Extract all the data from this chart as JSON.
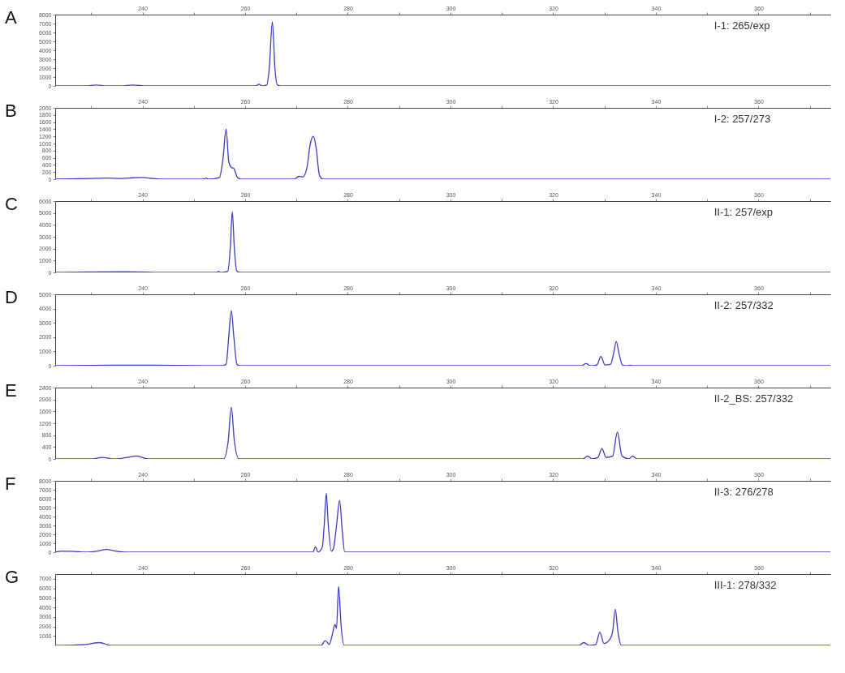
{
  "chart_data": [
    {
      "type": "line",
      "color": "#3b3bc4",
      "annotations": [
        "A",
        "I-1: 265/exp"
      ],
      "xlim": [
        223,
        374
      ],
      "xticks": [
        {
          "value": 230,
          "label": null
        },
        240,
        {
          "value": 250,
          "label": null
        },
        260,
        {
          "value": 270,
          "label": null
        },
        280,
        {
          "value": 290,
          "label": null
        },
        300,
        {
          "value": 310,
          "label": null
        },
        320,
        {
          "value": 330,
          "label": null
        },
        340,
        {
          "value": 350,
          "label": null
        },
        360,
        {
          "value": 370,
          "label": null
        }
      ],
      "ylim": [
        0,
        8000
      ],
      "yticks": [
        0,
        1000,
        2000,
        3000,
        4000,
        5000,
        6000,
        7000,
        8000
      ],
      "x": [
        223,
        229,
        231,
        233,
        236,
        238,
        241,
        243,
        262,
        262.7,
        263.3,
        264.2,
        264.7,
        265.3,
        265.8,
        266.3,
        267,
        374
      ],
      "values": [
        0,
        0,
        100,
        0,
        0,
        100,
        0,
        0,
        0,
        200,
        0,
        100,
        2000,
        7200,
        2000,
        100,
        0,
        0
      ]
    },
    {
      "type": "line",
      "color": "#3b3bc4",
      "annotations": [
        "B",
        "I-2: 257/273"
      ],
      "xlim": [
        223,
        374
      ],
      "xticks": [
        {
          "value": 230,
          "label": null
        },
        240,
        {
          "value": 250,
          "label": null
        },
        260,
        {
          "value": 270,
          "label": null
        },
        280,
        {
          "value": 290,
          "label": null
        },
        300,
        {
          "value": 310,
          "label": null
        },
        320,
        {
          "value": 330,
          "label": null
        },
        340,
        {
          "value": 350,
          "label": null
        },
        360,
        {
          "value": 370,
          "label": null
        }
      ],
      "ylim": [
        0,
        2000
      ],
      "yticks": [
        0,
        200,
        400,
        600,
        800,
        1000,
        1200,
        1400,
        1600,
        1800,
        2000
      ],
      "x": [
        223,
        230,
        233,
        236,
        238,
        240,
        242,
        244,
        252,
        252.4,
        252.8,
        255,
        255.7,
        256.3,
        256.8,
        257.3,
        257.8,
        258.5,
        259.2,
        269.5,
        270.5,
        271.2,
        272,
        272.7,
        273.3,
        273.8,
        274.5,
        275.2,
        374
      ],
      "values": [
        0,
        20,
        30,
        20,
        40,
        50,
        20,
        0,
        0,
        30,
        0,
        50,
        600,
        1400,
        500,
        330,
        300,
        50,
        0,
        0,
        80,
        60,
        300,
        1000,
        1200,
        900,
        100,
        0,
        0
      ]
    },
    {
      "type": "line",
      "color": "#3b3bc4",
      "annotations": [
        "C",
        "II-1: 257/exp"
      ],
      "xlim": [
        223,
        374
      ],
      "xticks": [
        {
          "value": 230,
          "label": null
        },
        240,
        {
          "value": 250,
          "label": null
        },
        260,
        {
          "value": 270,
          "label": null
        },
        280,
        {
          "value": 290,
          "label": null
        },
        300,
        {
          "value": 310,
          "label": null
        },
        320,
        {
          "value": 330,
          "label": null
        },
        340,
        {
          "value": 350,
          "label": null
        },
        360,
        {
          "value": 370,
          "label": null
        }
      ],
      "ylim": [
        0,
        6000
      ],
      "yticks": [
        0,
        1000,
        2000,
        3000,
        4000,
        5000,
        6000
      ],
      "x": [
        223,
        230,
        236,
        240,
        243,
        254.5,
        254.8,
        255.2,
        256.6,
        257.1,
        257.5,
        257.9,
        258.4,
        259,
        374
      ],
      "values": [
        0,
        40,
        50,
        40,
        0,
        0,
        100,
        0,
        100,
        2000,
        5100,
        2000,
        100,
        0,
        0
      ]
    },
    {
      "type": "line",
      "color": "#3b3bc4",
      "annotations": [
        "D",
        "II-2: 257/332"
      ],
      "xlim": [
        223,
        374
      ],
      "xticks": [
        {
          "value": 230,
          "label": null
        },
        240,
        {
          "value": 250,
          "label": null
        },
        260,
        {
          "value": 270,
          "label": null
        },
        280,
        {
          "value": 290,
          "label": null
        },
        300,
        {
          "value": 310,
          "label": null
        },
        320,
        {
          "value": 330,
          "label": null
        },
        340,
        {
          "value": 350,
          "label": null
        },
        360,
        {
          "value": 370,
          "label": null
        }
      ],
      "ylim": [
        0,
        5000
      ],
      "yticks": [
        0,
        1000,
        2000,
        3000,
        4000,
        5000
      ],
      "x": [
        223,
        235,
        242,
        255.5,
        256.3,
        256.8,
        257.3,
        257.8,
        258.4,
        259,
        325.5,
        326.4,
        327.3,
        328.5,
        329.3,
        330.1,
        331.2,
        331.8,
        332.3,
        332.8,
        333.5,
        334.5,
        335,
        335.5,
        374
      ],
      "values": [
        0,
        40,
        30,
        0,
        100,
        2000,
        3850,
        2000,
        100,
        0,
        0,
        150,
        0,
        50,
        650,
        50,
        100,
        900,
        1700,
        900,
        40,
        0,
        40,
        0,
        0
      ]
    },
    {
      "type": "line",
      "color": "#3b3bc4",
      "annotations": [
        "E",
        "II-2_BS: 257/332"
      ],
      "xlim": [
        223,
        374
      ],
      "xticks": [
        {
          "value": 230,
          "label": null
        },
        240,
        {
          "value": 250,
          "label": null
        },
        260,
        {
          "value": 270,
          "label": null
        },
        280,
        {
          "value": 290,
          "label": null
        },
        300,
        {
          "value": 310,
          "label": null
        },
        320,
        {
          "value": 330,
          "label": null
        },
        340,
        {
          "value": 350,
          "label": null
        },
        360,
        {
          "value": 370,
          "label": null
        }
      ],
      "ylim": [
        0,
        2400
      ],
      "yticks": [
        0,
        400,
        800,
        1200,
        1600,
        2000,
        2400
      ],
      "x": [
        223,
        230,
        232.2,
        234.5,
        237,
        238.9,
        241,
        255.8,
        256.7,
        257.3,
        257.9,
        258.8,
        325.8,
        326.7,
        327.6,
        328.7,
        329.5,
        330.3,
        331.6,
        332.5,
        333.4,
        334.7,
        335.5,
        336.3,
        374
      ],
      "values": [
        0,
        0,
        50,
        0,
        50,
        100,
        0,
        0,
        600,
        1750,
        600,
        0,
        0,
        100,
        0,
        50,
        350,
        50,
        100,
        900,
        100,
        0,
        100,
        0,
        0
      ]
    },
    {
      "type": "line",
      "color": "#3b3bc4",
      "annotations": [
        "F",
        "II-3: 276/278"
      ],
      "xlim": [
        223,
        374
      ],
      "xticks": [
        {
          "value": 230,
          "label": null
        },
        240,
        {
          "value": 250,
          "label": null
        },
        260,
        {
          "value": 270,
          "label": null
        },
        280,
        {
          "value": 290,
          "label": null
        },
        300,
        {
          "value": 310,
          "label": null
        },
        320,
        {
          "value": 330,
          "label": null
        },
        340,
        {
          "value": 350,
          "label": null
        },
        360,
        {
          "value": 370,
          "label": null
        }
      ],
      "ylim": [
        0,
        8000
      ],
      "yticks": [
        0,
        1000,
        2000,
        3000,
        4000,
        5000,
        6000,
        7000,
        8000
      ],
      "x": [
        223,
        224,
        226,
        229,
        231,
        233,
        235,
        237,
        273.2,
        273.7,
        274.2,
        275,
        275.4,
        275.8,
        276.2,
        276.8,
        277.2,
        277.8,
        278.4,
        278.9,
        279.4,
        374
      ],
      "values": [
        0,
        100,
        100,
        0,
        100,
        300,
        100,
        0,
        0,
        600,
        0,
        500,
        3000,
        6600,
        3000,
        100,
        400,
        3000,
        5800,
        2500,
        0,
        0
      ]
    },
    {
      "type": "line",
      "color": "#3b3bc4",
      "annotations": [
        "G",
        "III-1: 278/332"
      ],
      "xlim": [
        223,
        374
      ],
      "xticks": [
        {
          "value": 230,
          "label": null
        },
        240,
        {
          "value": 250,
          "label": null
        },
        260,
        {
          "value": 270,
          "label": null
        },
        280,
        {
          "value": 290,
          "label": null
        },
        300,
        {
          "value": 310,
          "label": null
        },
        320,
        {
          "value": 330,
          "label": null
        },
        340,
        {
          "value": 350,
          "label": null
        },
        360,
        {
          "value": 370,
          "label": null
        }
      ],
      "ylim": [
        0,
        7500
      ],
      "yticks": [
        1000,
        2000,
        3000,
        4000,
        5000,
        6000,
        7000
      ],
      "x": [
        223,
        229,
        231.6,
        234,
        274.8,
        275.6,
        276.4,
        277,
        277.5,
        277.8,
        278.2,
        278.7,
        279.3,
        325,
        326,
        327,
        328.3,
        329.1,
        329.9,
        331,
        331.6,
        332.1,
        332.6,
        333.3,
        374
      ],
      "values": [
        0,
        100,
        300,
        0,
        0,
        500,
        100,
        1200,
        2200,
        1800,
        6200,
        2000,
        0,
        0,
        300,
        0,
        100,
        1400,
        200,
        600,
        1500,
        3800,
        1500,
        0,
        0
      ]
    }
  ]
}
